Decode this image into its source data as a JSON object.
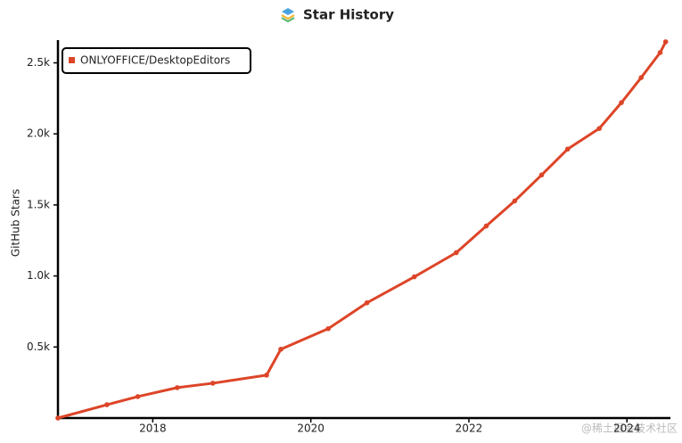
{
  "chart_data": {
    "type": "line",
    "title": "Star History",
    "y_label": "GitHub Stars",
    "x": [
      2016.8,
      2017.42,
      2017.81,
      2018.31,
      2018.76,
      2019.44,
      2019.62,
      2020.22,
      2020.71,
      2021.31,
      2021.84,
      2022.22,
      2022.58,
      2022.92,
      2023.25,
      2023.65,
      2023.93,
      2024.18,
      2024.42,
      2024.49
    ],
    "series": [
      {
        "name": "ONLYOFFICE/DesktopEditors",
        "color": "#dd4528",
        "values": [
          0,
          94,
          151,
          214,
          245,
          302,
          484,
          629,
          811,
          994,
          1164,
          1352,
          1528,
          1711,
          1893,
          2038,
          2220,
          2396,
          2572,
          2648
        ]
      }
    ],
    "xlim": [
      2016.8,
      2024.55
    ],
    "xticks": [
      2018,
      2020,
      2022,
      2024
    ],
    "ylim": [
      0,
      2660
    ],
    "yticks": [
      {
        "value": 500,
        "label": "0.5k"
      },
      {
        "value": 1000,
        "label": "1.0k"
      },
      {
        "value": 1500,
        "label": "1.5k"
      },
      {
        "value": 2000,
        "label": "2.0k"
      },
      {
        "value": 2500,
        "label": "2.5k"
      }
    ],
    "legend": "top-left",
    "grid": false,
    "watermark": "@稀土掘金技术社区"
  }
}
